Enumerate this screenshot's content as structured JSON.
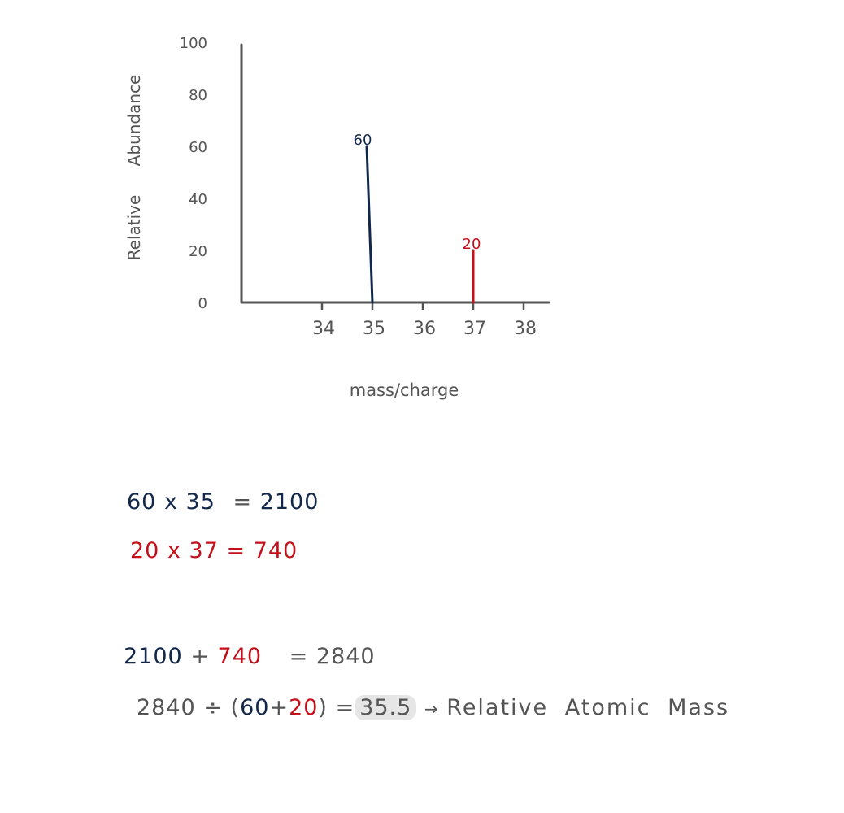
{
  "colors": {
    "navy": "#12284a",
    "red": "#c4101a",
    "grey": "#555555",
    "highlight": "#e6e6e6"
  },
  "chart_data": {
    "type": "bar",
    "xlabel": "mass/charge",
    "ylabel_words": [
      "Relative",
      "Abundance"
    ],
    "ylim": [
      0,
      100
    ],
    "yticks": [
      0,
      20,
      40,
      60,
      80,
      100
    ],
    "xticks": [
      34,
      35,
      36,
      37,
      38
    ],
    "grid": false,
    "series": [
      {
        "x": 35,
        "value": 60,
        "label": "60",
        "color": "#12284a"
      },
      {
        "x": 37,
        "value": 20,
        "label": "20",
        "color": "#c4101a"
      }
    ]
  },
  "calc": {
    "line1": {
      "a": "60",
      "op": "x",
      "b": "35",
      "eq": "=",
      "result": "2100"
    },
    "line2": {
      "a": "20",
      "op": "x",
      "b": "37",
      "eq": "=",
      "result": "740"
    },
    "line3": {
      "a": "2100",
      "plus": "+",
      "b": "740",
      "eq": "=",
      "result": "2840"
    },
    "line4": {
      "a": "2840",
      "div": "÷",
      "open": "(",
      "b": "60",
      "plus": "+",
      "c": "20",
      "close": ")",
      "eq": "=",
      "result": "35.5",
      "arrow": "→",
      "label": "Relative Atomic Mass"
    }
  }
}
